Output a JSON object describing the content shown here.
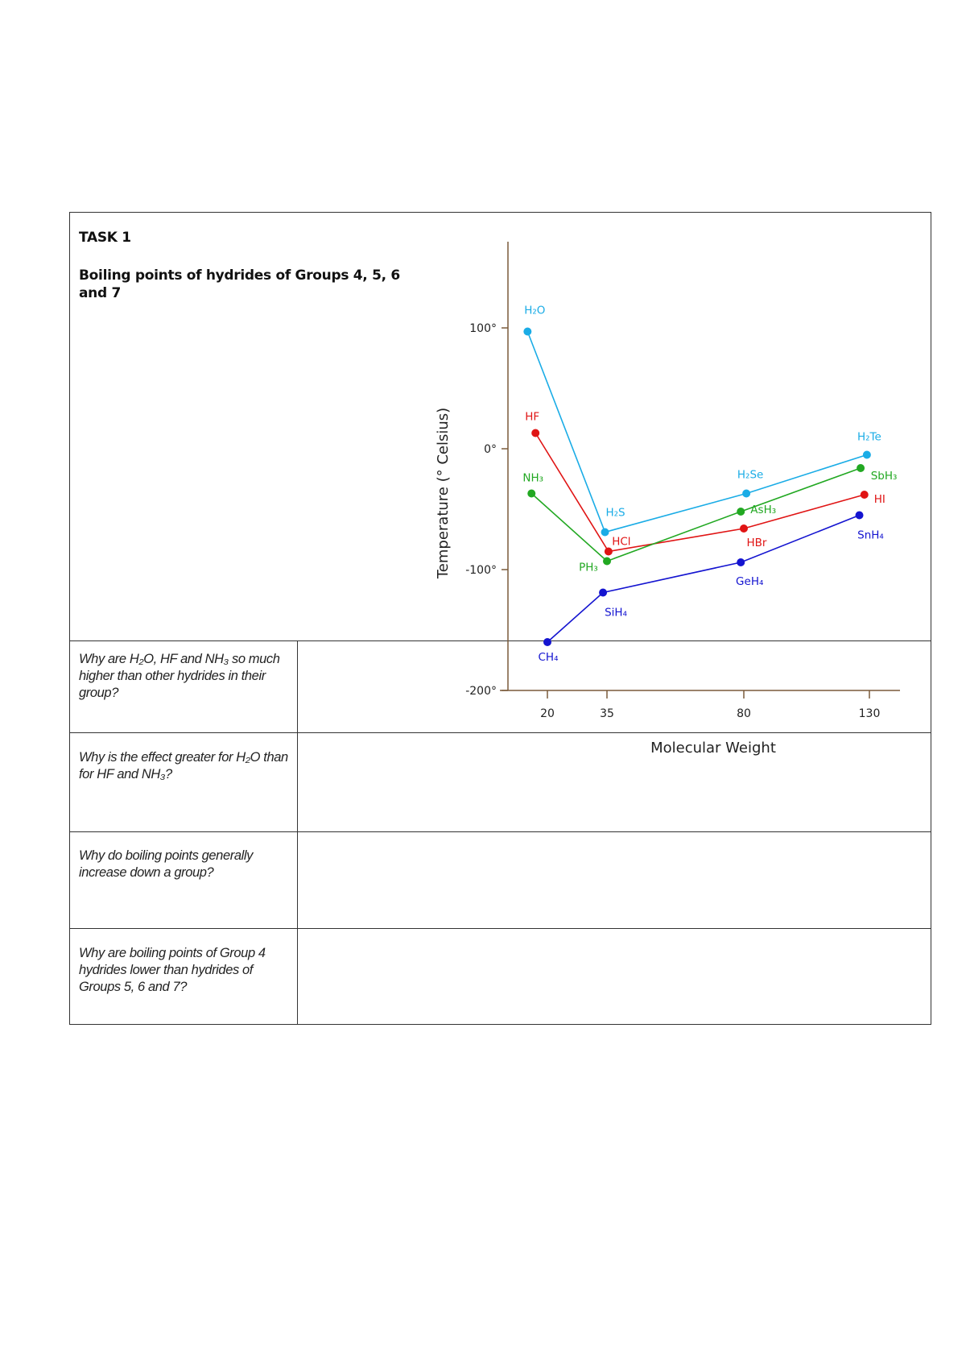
{
  "task": {
    "title": "TASK 1",
    "subtitle": "Boiling points of hydrides of Groups 4, 5, 6 and 7"
  },
  "questions": [
    {
      "text": "Why are H₂O, HF and NH₃ so much higher than other hydrides in their group?",
      "answer": ""
    },
    {
      "text": "Why is the effect greater for H₂O than for HF and NH₃?",
      "answer": ""
    },
    {
      "text": "Why do boiling points generally increase down a group?",
      "answer": ""
    },
    {
      "text": "Why are boiling points of Group 4 hydrides lower than hydrides of Groups 5, 6 and 7?",
      "answer": ""
    }
  ],
  "chart_data": {
    "type": "line",
    "title": "",
    "xlabel": "Molecular Weight",
    "ylabel": "Temperature (° Celsius)",
    "x_ticks": [
      20,
      35,
      80,
      130
    ],
    "x_tick_labels": [
      "20",
      "35",
      "80",
      "130"
    ],
    "y_ticks": [
      100,
      0,
      -100,
      -200
    ],
    "y_tick_labels": [
      "100°",
      "0°",
      "-100°",
      "-200°"
    ],
    "ylim": [
      -200,
      175
    ],
    "grid": false,
    "legend": "none",
    "axis_color": "#7a5a3a",
    "series": [
      {
        "group": "6",
        "color": "#1aace6",
        "points": [
          {
            "label": "H₂O",
            "x": 15,
            "y": 97
          },
          {
            "label": "H₂S",
            "x": 34.5,
            "y": -69
          },
          {
            "label": "H₂Se",
            "x": 81,
            "y": -37
          },
          {
            "label": "H₂Te",
            "x": 129,
            "y": -5
          }
        ]
      },
      {
        "group": "7",
        "color": "#e01414",
        "points": [
          {
            "label": "HF",
            "x": 17,
            "y": 13
          },
          {
            "label": "HCl",
            "x": 35.5,
            "y": -85
          },
          {
            "label": "HBr",
            "x": 80,
            "y": -66
          },
          {
            "label": "HI",
            "x": 128,
            "y": -38
          }
        ]
      },
      {
        "group": "5",
        "color": "#22a822",
        "points": [
          {
            "label": "NH₃",
            "x": 16,
            "y": -37
          },
          {
            "label": "PH₃",
            "x": 35,
            "y": -93
          },
          {
            "label": "AsH₃",
            "x": 79,
            "y": -52
          },
          {
            "label": "SbH₃",
            "x": 126.5,
            "y": -16
          }
        ]
      },
      {
        "group": "4",
        "color": "#1414d0",
        "points": [
          {
            "label": "CH₄",
            "x": 20,
            "y": -160
          },
          {
            "label": "SiH₄",
            "x": 34,
            "y": -119
          },
          {
            "label": "GeH₄",
            "x": 79,
            "y": -94
          },
          {
            "label": "SnH₄",
            "x": 126,
            "y": -55
          }
        ]
      }
    ]
  }
}
